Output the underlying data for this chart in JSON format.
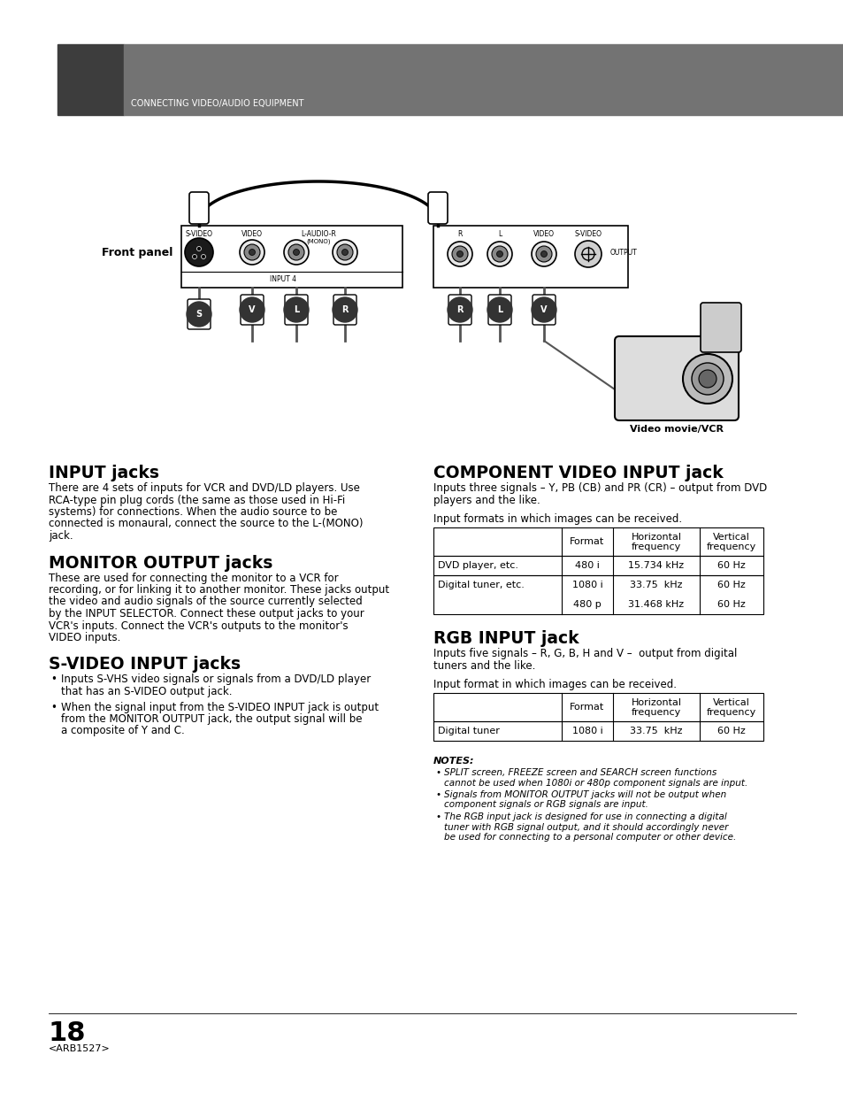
{
  "page_bg": "#ffffff",
  "header_bg_dark": "#3d3d3d",
  "header_bg_light": "#737373",
  "header_text": "CONNECTING VIDEO/AUDIO EQUIPMENT",
  "header_text_color": "#ffffff",
  "section1_title": "INPUT jacks",
  "section1_body": [
    "There are 4 sets of inputs for VCR and DVD/LD players. Use",
    "RCA-type pin plug cords (the same as those used in Hi-Fi",
    "systems) for connections. When the audio source to be",
    "connected is monaural, connect the source to the L-(MONO)",
    "jack."
  ],
  "section2_title": "MONITOR OUTPUT jacks",
  "section2_body": [
    "These are used for connecting the monitor to a VCR for",
    "recording, or for linking it to another monitor. These jacks output",
    "the video and audio signals of the source currently selected",
    "by the INPUT SELECTOR. Connect these output jacks to your",
    "VCR's inputs. Connect the VCR's outputs to the monitor's",
    "VIDEO inputs."
  ],
  "section3_title": "S-VIDEO INPUT jacks",
  "section3_bullets": [
    [
      "Inputs S-VHS video signals or signals from a DVD/LD player",
      "that has an S-VIDEO output jack."
    ],
    [
      "When the signal input from the S-VIDEO INPUT jack is output",
      "from the MONITOR OUTPUT jack, the output signal will be",
      "a composite of Y and C."
    ]
  ],
  "section4_title": "COMPONENT VIDEO INPUT jack",
  "section4_body": [
    "Inputs three signals – Y, PB (CB) and PR (CR) – output from DVD",
    "players and the like."
  ],
  "section4_table_intro": "Input formats in which images can be received.",
  "section4_table_headers": [
    "",
    "Format",
    "Horizontal\nfrequency",
    "Vertical\nfrequency"
  ],
  "section4_table_rows": [
    [
      "DVD player, etc.",
      "480 i",
      "15.734 kHz",
      "60 Hz"
    ],
    [
      "Digital tuner, etc.",
      "1080 i\n480 p",
      "33.75  kHz\n31.468 kHz",
      "60 Hz\n60 Hz"
    ]
  ],
  "section5_title": "RGB INPUT jack",
  "section5_body": [
    "Inputs five signals – R, G, B, H and V –  output from digital",
    "tuners and the like."
  ],
  "section5_table_intro": "Input format in which images can be received.",
  "section5_table_headers": [
    "",
    "Format",
    "Horizontal\nfrequency",
    "Vertical\nfrequency"
  ],
  "section5_table_rows": [
    [
      "Digital tuner",
      "1080 i",
      "33.75  kHz",
      "60 Hz"
    ]
  ],
  "notes_title": "NOTES:",
  "notes": [
    [
      "SPLIT screen, FREEZE screen and SEARCH screen functions",
      "cannot be used when 1080i or 480p component signals are input."
    ],
    [
      "Signals from MONITOR OUTPUT jacks will not be output when",
      "component signals or RGB signals are input."
    ],
    [
      "The RGB input jack is designed for use in connecting a digital",
      "tuner with RGB signal output, and it should accordingly never",
      "be used for connecting to a personal computer or other device."
    ]
  ],
  "page_number": "18",
  "page_code": "<ARB1527>"
}
